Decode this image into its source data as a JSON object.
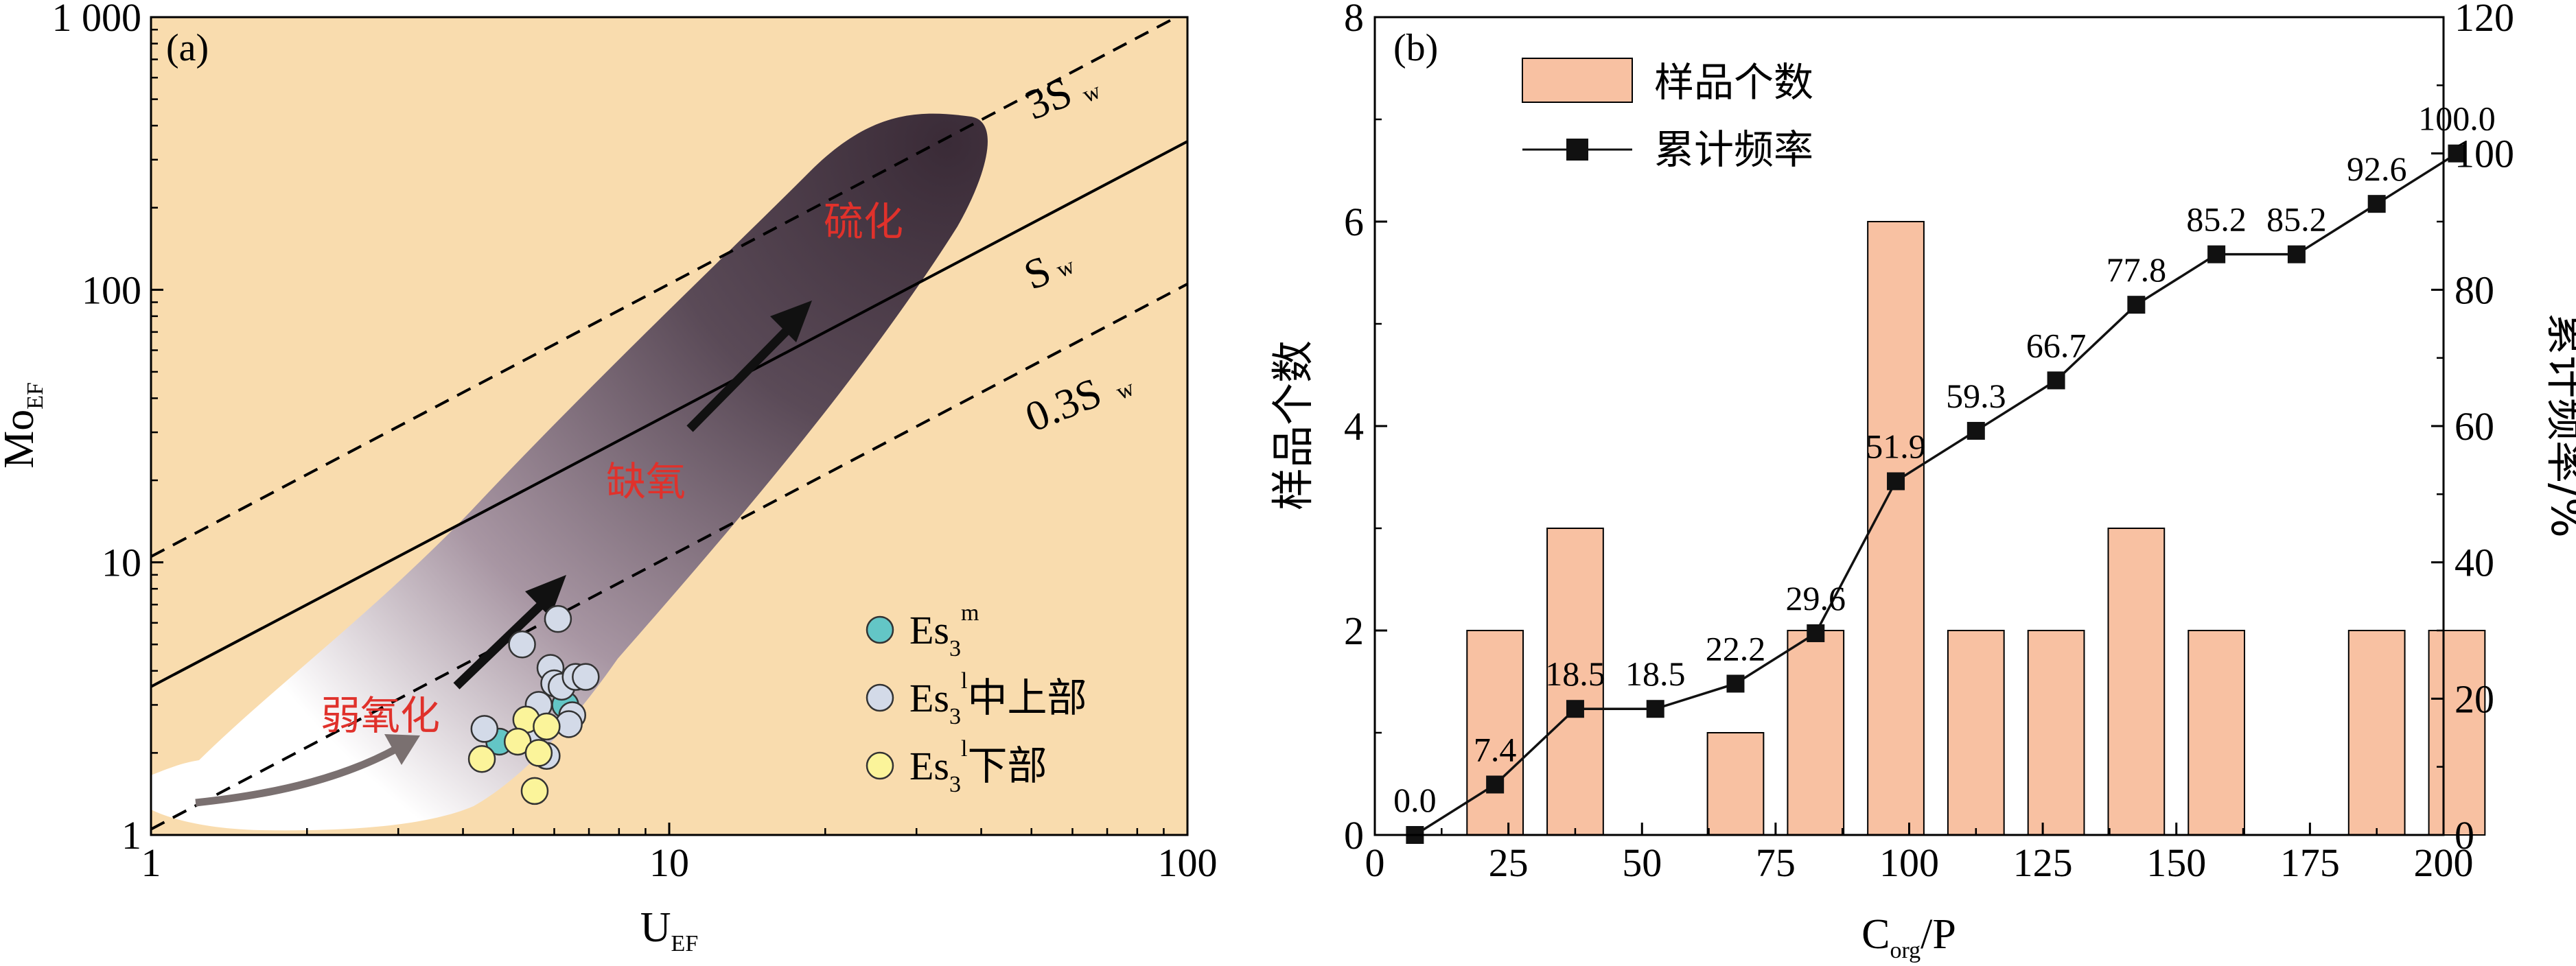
{
  "chart_data": [
    {
      "type": "scatter",
      "panel_label": "(a)",
      "xlabel": "U",
      "xlabel_sub": "EF",
      "ylabel": "Mo",
      "ylabel_sub": "EF",
      "xscale": "log",
      "yscale": "log",
      "xlim": [
        1,
        100
      ],
      "ylim": [
        1,
        1000
      ],
      "x_ticks": [
        "1",
        "10",
        "100"
      ],
      "y_ticks": [
        "1",
        "10",
        "100",
        "1 000"
      ],
      "reference_lines": [
        {
          "label": "3S",
          "label_sub": "w",
          "slope_factor": 3,
          "style": "dashed"
        },
        {
          "label": "S",
          "label_sub": "w",
          "slope_factor": 1,
          "style": "solid"
        },
        {
          "label": "0.3S",
          "label_sub": "w",
          "slope_factor": 0.3,
          "style": "dashed"
        }
      ],
      "region_labels": [
        "弱氧化",
        "缺氧",
        "硫化"
      ],
      "series": [
        {
          "name": "Es3m",
          "legend_main": "Es",
          "legend_sub": "3",
          "legend_sup": "m",
          "legend_suffix": "",
          "color": "#63c6c6",
          "points": [
            [
              4.7,
              2.2
            ],
            [
              6.3,
              3.0
            ]
          ]
        },
        {
          "name": "Es3l中上部",
          "legend_main": "Es",
          "legend_sub": "3",
          "legend_sup": "l",
          "legend_suffix": "中上部",
          "color": "#d3dae8",
          "points": [
            [
              4.4,
              2.45
            ],
            [
              5.2,
              5.0
            ],
            [
              6.1,
              6.2
            ],
            [
              5.9,
              4.1
            ],
            [
              6.0,
              3.6
            ],
            [
              6.2,
              3.5
            ],
            [
              6.6,
              3.8
            ],
            [
              6.9,
              3.8
            ],
            [
              5.6,
              3.0
            ],
            [
              6.5,
              2.75
            ],
            [
              6.4,
              2.55
            ],
            [
              5.5,
              2.4
            ],
            [
              5.8,
              1.95
            ]
          ]
        },
        {
          "name": "Es3l下部",
          "legend_main": "Es",
          "legend_sub": "3",
          "legend_sup": "l",
          "legend_suffix": "下部",
          "color": "#fbf49a",
          "points": [
            [
              4.35,
              1.9
            ],
            [
              5.3,
              2.65
            ],
            [
              5.1,
              2.2
            ],
            [
              5.6,
              2.0
            ],
            [
              5.8,
              2.5
            ],
            [
              5.5,
              1.45
            ]
          ]
        }
      ],
      "colors": {
        "background": "#f9dcae",
        "shade_dark": "#3d2e3a"
      }
    },
    {
      "type": "bar+line",
      "panel_label": "(b)",
      "xlabel": "C",
      "xlabel_sub": "org",
      "xlabel_suffix": "/P",
      "ylabel": "样品个数",
      "ylabel_right": "累计频率/%",
      "xlim": [
        0,
        200
      ],
      "ylim": [
        0,
        8
      ],
      "ylim_right": [
        0,
        120
      ],
      "x_ticks": [
        "0",
        "25",
        "50",
        "75",
        "100",
        "125",
        "150",
        "175",
        "200"
      ],
      "y_ticks": [
        "0",
        "2",
        "4",
        "6",
        "8"
      ],
      "y_ticks_right": [
        "0",
        "20",
        "40",
        "60",
        "80",
        "100",
        "120"
      ],
      "bar_centers": [
        7.5,
        22.5,
        37.5,
        52.5,
        67.5,
        82.5,
        97.5,
        112.5,
        127.5,
        142.5,
        157.5,
        172.5,
        187.5,
        202.5
      ],
      "series": [
        {
          "name": "样品个数",
          "type": "bar",
          "color": "#f8c1a2",
          "values": [
            0,
            2,
            3,
            0,
            1,
            2,
            6,
            2,
            2,
            3,
            2,
            0,
            2,
            2
          ]
        },
        {
          "name": "累计频率",
          "type": "line",
          "color": "#111111",
          "values": [
            0.0,
            7.4,
            18.5,
            18.5,
            22.2,
            29.6,
            51.9,
            59.3,
            66.7,
            77.8,
            85.2,
            85.2,
            92.6,
            100.0
          ],
          "labels": [
            "0.0",
            "7.4",
            "18.5",
            "18.5",
            "22.2",
            "29.6",
            "51.9",
            "59.3",
            "66.7",
            "77.8",
            "85.2",
            "85.2",
            "92.6",
            "100.0"
          ]
        }
      ],
      "legend_position": "top-left"
    }
  ]
}
